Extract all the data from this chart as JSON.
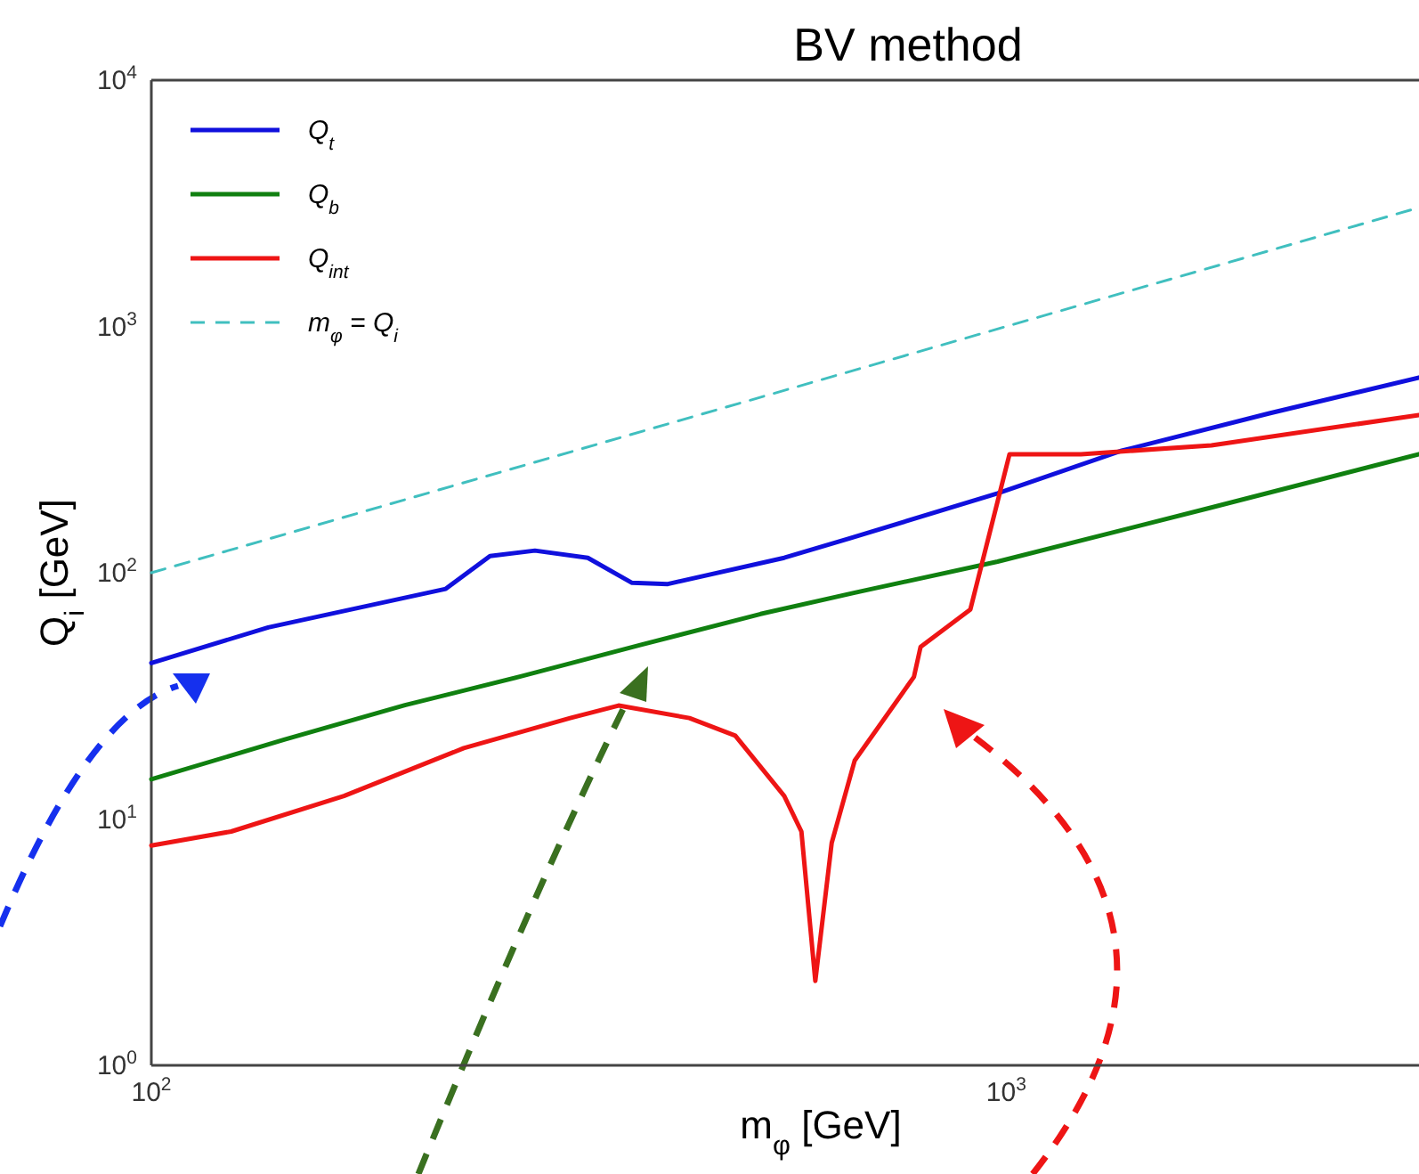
{
  "chart_data": {
    "type": "line",
    "title": "BV method",
    "xlabel": "m$_{φ}$ [GeV]",
    "ylabel": "Q$_{i}$ [GeV]",
    "log": "xy",
    "grid": false,
    "legend": "top left",
    "xlim": [
      100,
      3040
    ],
    "ylim": [
      1,
      10000
    ],
    "xticks": [
      {
        "value": 100,
        "label": "10$^{2}$"
      },
      {
        "value": 1000,
        "label": "10$^{3}$"
      }
    ],
    "yticks": [
      {
        "value": 1,
        "label": "10$^{0}$"
      },
      {
        "value": 10,
        "label": "10$^{1}$"
      },
      {
        "value": 100,
        "label": "10$^{2}$"
      },
      {
        "value": 1000,
        "label": "10$^{3}$"
      },
      {
        "value": 10000,
        "label": "10$^{4}$"
      }
    ],
    "series": [
      {
        "name": "Q$_{t}$",
        "color": "#1010dd",
        "line_style": "solid",
        "x": [
          100,
          137,
          221,
          249,
          281,
          324,
          365,
          402,
          550,
          656,
          977,
          1365,
          2032,
          3040
        ],
        "values": [
          43,
          60,
          86,
          117,
          123,
          115,
          91,
          90,
          115,
          138,
          210,
          313,
          444,
          620
        ]
      },
      {
        "name": "Q$_{b}$",
        "color": "#108010",
        "line_style": "solid",
        "x": [
          100,
          143,
          198,
          271,
          374,
          516,
          665,
          977,
          1738,
          3040
        ],
        "values": [
          14.5,
          21,
          29,
          38,
          51,
          68,
          83,
          111,
          184,
          303
        ]
      },
      {
        "name": "Q$_{int}$",
        "color": "#ee1515",
        "line_style": "solid",
        "x": [
          100,
          124,
          168,
          232,
          309,
          352,
          426,
          482,
          550,
          576,
          598,
          625,
          665,
          780,
          794,
          908,
          1009,
          1223,
          1738,
          3040
        ],
        "values": [
          7.8,
          8.9,
          12.4,
          19.4,
          25.7,
          28.9,
          25.7,
          21.8,
          12.4,
          8.9,
          2.2,
          8.0,
          17.3,
          37.8,
          50,
          71,
          303,
          303,
          329,
          437
        ]
      },
      {
        "name": "m$_{φ}$ = Q$_{i}$",
        "color": "#40bfbf",
        "line_style": "dashed",
        "x": [
          100,
          3040
        ],
        "values": [
          100,
          3040
        ]
      }
    ]
  }
}
